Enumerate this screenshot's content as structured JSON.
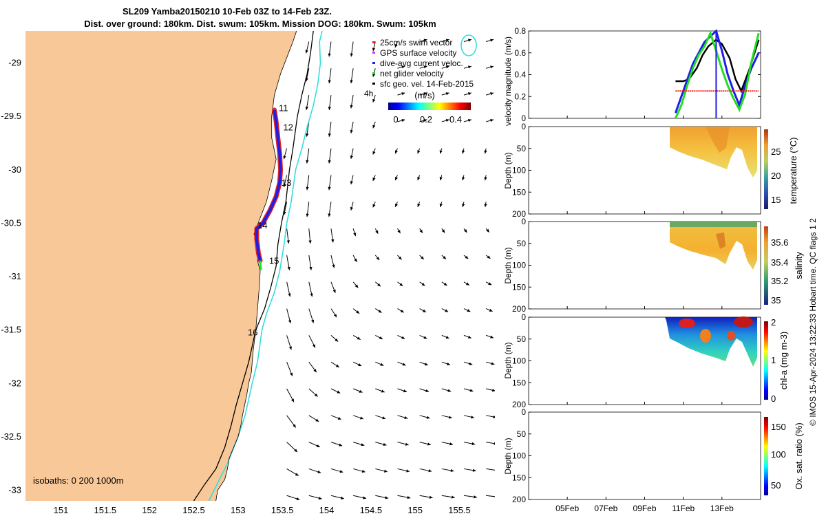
{
  "title": {
    "line1": "SL209 Yamba20150210 10-Feb 03Z to 14-Feb 23Z.",
    "line2": "Dist. over ground: 180km. Dist. swum: 105km. Mission DOG: 180km. Swum: 105km"
  },
  "side_note": "© IMOS 15-Apr-2024 13:22:33 Hobart time. QC flags 1  2",
  "colors": {
    "land": "#F8C898",
    "isobath_200": "#000000",
    "isobath_1000": "#33DDDD",
    "swim_vector": "#E8231E",
    "gps_vel": "#E032E0",
    "dive_avg": "#1E1EE8",
    "net_glider": "#22DD22",
    "geo_vel": "#000000"
  },
  "chart_data": [
    {
      "type": "scatter",
      "name": "map",
      "xlim": [
        150.6,
        155.9
      ],
      "ylim": [
        -33.1,
        -28.7
      ],
      "x_ticks": [
        "151",
        "151.5",
        "152",
        "152.5",
        "153",
        "153.5",
        "154",
        "154.5",
        "155",
        "155.5"
      ],
      "y_ticks": [
        "-29",
        "-29.5",
        "-30",
        "-30.5",
        "-31",
        "-31.5",
        "-32",
        "-32.5",
        "-33"
      ],
      "legend": [
        {
          "label": "25cm/s swim vector",
          "color": "#E8231E"
        },
        {
          "label": "GPS surface velocity",
          "color": "#E032E0"
        },
        {
          "label": "dive-avg current veloc.",
          "color": "#1E1EE8"
        },
        {
          "label": "net glider velocity",
          "color": "#22DD22"
        },
        {
          "label": "sfc geo. vel. 14-Feb-2015",
          "color": "#000000"
        }
      ],
      "colorbar": {
        "label": "(m/s)",
        "ticks": [
          "0",
          "0.2",
          "0.4"
        ],
        "range": [
          0,
          0.5
        ]
      },
      "scale_label": "4h",
      "isobaths_label": "isobaths: 0   200  1000m",
      "day_labels": [
        {
          "text": "11",
          "lon": 153.46,
          "lat": -29.45
        },
        {
          "text": "12",
          "lon": 153.51,
          "lat": -29.63
        },
        {
          "text": "13",
          "lon": 153.49,
          "lat": -30.15
        },
        {
          "text": "14",
          "lon": 153.22,
          "lat": -30.55
        },
        {
          "text": "15",
          "lon": 153.35,
          "lat": -30.88
        },
        {
          "text": "16",
          "lon": 153.11,
          "lat": -31.55
        }
      ],
      "track": [
        [
          153.41,
          -29.44
        ],
        [
          153.43,
          -29.55
        ],
        [
          153.45,
          -29.7
        ],
        [
          153.47,
          -29.85
        ],
        [
          153.48,
          -30.0
        ],
        [
          153.47,
          -30.12
        ],
        [
          153.43,
          -30.25
        ],
        [
          153.36,
          -30.38
        ],
        [
          153.28,
          -30.5
        ],
        [
          153.21,
          -30.55
        ],
        [
          153.21,
          -30.65
        ],
        [
          153.23,
          -30.78
        ],
        [
          153.25,
          -30.85
        ]
      ],
      "coast": [
        [
          152.74,
          -33.15
        ],
        [
          152.77,
          -33.0
        ],
        [
          152.85,
          -32.9
        ],
        [
          152.88,
          -32.8
        ],
        [
          152.9,
          -32.7
        ],
        [
          153.0,
          -32.5
        ],
        [
          153.03,
          -32.4
        ],
        [
          153.05,
          -32.3
        ],
        [
          153.1,
          -32.1
        ],
        [
          153.12,
          -32.0
        ],
        [
          153.15,
          -31.9
        ],
        [
          153.17,
          -31.7
        ],
        [
          153.2,
          -31.5
        ],
        [
          153.22,
          -31.3
        ],
        [
          153.24,
          -31.1
        ],
        [
          153.25,
          -30.95
        ],
        [
          153.22,
          -30.85
        ],
        [
          153.23,
          -30.75
        ],
        [
          153.18,
          -30.6
        ],
        [
          153.25,
          -30.45
        ],
        [
          153.32,
          -30.3
        ],
        [
          153.38,
          -30.1
        ],
        [
          153.43,
          -29.9
        ],
        [
          153.38,
          -29.7
        ],
        [
          153.38,
          -29.5
        ],
        [
          153.41,
          -29.3
        ],
        [
          153.48,
          -29.1
        ],
        [
          153.55,
          -28.95
        ],
        [
          153.62,
          -28.8
        ],
        [
          153.66,
          -28.7
        ]
      ],
      "isobath_200": [
        [
          152.5,
          -33.1
        ],
        [
          152.62,
          -32.95
        ],
        [
          152.75,
          -32.8
        ],
        [
          152.85,
          -32.6
        ],
        [
          152.92,
          -32.4
        ],
        [
          152.98,
          -32.2
        ],
        [
          153.05,
          -32.0
        ],
        [
          153.12,
          -31.8
        ],
        [
          153.2,
          -31.5
        ],
        [
          153.3,
          -31.3
        ],
        [
          153.37,
          -31.1
        ],
        [
          153.43,
          -30.9
        ],
        [
          153.45,
          -30.7
        ],
        [
          153.49,
          -30.5
        ],
        [
          153.54,
          -30.3
        ],
        [
          153.58,
          -30.0
        ],
        [
          153.62,
          -29.8
        ],
        [
          153.67,
          -29.5
        ],
        [
          153.72,
          -29.3
        ],
        [
          153.78,
          -29.1
        ],
        [
          153.82,
          -28.9
        ],
        [
          153.85,
          -28.7
        ]
      ],
      "isobath_1000": [
        [
          152.67,
          -33.1
        ],
        [
          152.76,
          -32.95
        ],
        [
          152.88,
          -32.75
        ],
        [
          153.0,
          -32.5
        ],
        [
          153.08,
          -32.3
        ],
        [
          153.16,
          -32.0
        ],
        [
          153.22,
          -31.8
        ],
        [
          153.27,
          -31.5
        ],
        [
          153.32,
          -31.35
        ],
        [
          153.41,
          -31.15
        ],
        [
          153.47,
          -30.95
        ],
        [
          153.52,
          -30.7
        ],
        [
          153.55,
          -30.5
        ],
        [
          153.6,
          -30.3
        ],
        [
          153.65,
          -30.0
        ],
        [
          153.72,
          -29.8
        ],
        [
          153.78,
          -29.6
        ],
        [
          153.85,
          -29.4
        ],
        [
          153.9,
          -29.2
        ],
        [
          153.93,
          -29.0
        ],
        [
          153.92,
          -28.8
        ],
        [
          153.95,
          -28.7
        ]
      ]
    },
    {
      "type": "line",
      "name": "velocity",
      "ylabel": "velocity magnitude (m/s)",
      "ylim": [
        0,
        0.8
      ],
      "xlim_days": [
        "03-Feb",
        "15-Feb"
      ],
      "y_ticks": [
        "0",
        "0.2",
        "0.4",
        "0.6",
        "0.8"
      ],
      "series": [
        {
          "color": "#000000",
          "x_days": [
            10.6,
            11.0,
            11.3,
            11.7,
            12.0,
            12.3,
            12.7,
            13.0,
            13.4,
            13.7,
            14.0,
            14.4,
            14.9
          ],
          "values": [
            0.34,
            0.34,
            0.36,
            0.46,
            0.58,
            0.66,
            0.72,
            0.68,
            0.55,
            0.36,
            0.25,
            0.44,
            0.72
          ]
        },
        {
          "color": "#1E1EE8",
          "x_days": [
            10.6,
            10.9,
            11.2,
            11.5,
            11.8,
            12.1,
            12.4,
            12.7,
            13.0,
            13.3,
            13.6,
            13.9,
            14.2,
            14.5,
            14.9
          ],
          "values": [
            0.05,
            0.2,
            0.35,
            0.5,
            0.6,
            0.7,
            0.75,
            0.8,
            0.62,
            0.4,
            0.25,
            0.12,
            0.3,
            0.45,
            0.6
          ]
        },
        {
          "color": "#22DD22",
          "x_days": [
            10.6,
            10.9,
            11.2,
            11.5,
            11.8,
            12.1,
            12.4,
            12.7,
            13.0,
            13.3,
            13.6,
            13.9,
            14.2,
            14.5,
            14.9
          ],
          "values": [
            0.0,
            0.12,
            0.3,
            0.46,
            0.58,
            0.66,
            0.78,
            0.62,
            0.45,
            0.3,
            0.18,
            0.08,
            0.22,
            0.5,
            0.78
          ]
        },
        {
          "color": "#E8231E",
          "x_days": [
            10.6,
            14.9
          ],
          "values": [
            0.25,
            0.25
          ]
        }
      ]
    },
    {
      "type": "heatmap",
      "name": "temperature",
      "ylabel": "Depth (m)",
      "colorbar_label": "temperature (°C)",
      "colorbar_ticks": [
        "15",
        "20",
        "25"
      ],
      "ylim": [
        200,
        0
      ],
      "y_ticks": [
        "0",
        "50",
        "100",
        "150",
        "200"
      ]
    },
    {
      "type": "heatmap",
      "name": "salinity",
      "ylabel": "Depth (m)",
      "colorbar_label": "salinity",
      "colorbar_ticks": [
        "35",
        "35.2",
        "35.4",
        "35.6"
      ],
      "ylim": [
        200,
        0
      ],
      "y_ticks": [
        "0",
        "50",
        "100",
        "150",
        "200"
      ]
    },
    {
      "type": "heatmap",
      "name": "chl-a",
      "ylabel": "Depth (m)",
      "colorbar_label": "chl-a (mg m-3)",
      "colorbar_ticks": [
        "0",
        "1",
        "2"
      ],
      "ylim": [
        200,
        0
      ],
      "y_ticks": [
        "0",
        "50",
        "100",
        "150",
        "200"
      ]
    },
    {
      "type": "heatmap",
      "name": "oxygen",
      "ylabel": "Depth (m)",
      "colorbar_label": "Ox. sat. ratio (%)",
      "colorbar_ticks": [
        "50",
        "100",
        "150"
      ],
      "ylim": [
        200,
        0
      ],
      "y_ticks": [
        "0",
        "50",
        "100",
        "150",
        "200"
      ],
      "x_ticks": [
        "05Feb",
        "07Feb",
        "09Feb",
        "11Feb",
        "13Feb"
      ]
    }
  ]
}
